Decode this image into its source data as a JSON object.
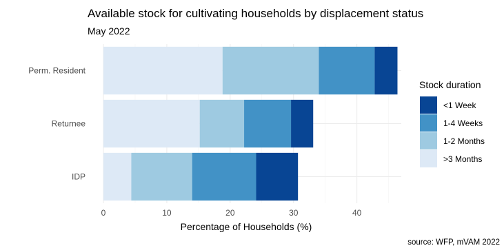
{
  "chart_data": {
    "type": "bar",
    "orientation": "horizontal",
    "stacked": true,
    "title": "Available stock for cultivating households by displacement status",
    "subtitle": "May 2022",
    "xlabel": "Percentage of Households (%)",
    "ylabel": "",
    "caption": "source: WFP, mVAM 2022",
    "categories": [
      "Perm. Resident",
      "Returnee",
      "IDP"
    ],
    "xlim": [
      0,
      47
    ],
    "xticks": [
      0,
      10,
      20,
      30,
      40
    ],
    "legend_title": "Stock duration",
    "legend_position": "right",
    "series": [
      {
        "name": ">3 Months",
        "color": "#dde9f6",
        "values": [
          18.8,
          15.2,
          4.4
        ]
      },
      {
        "name": "1-2 Months",
        "color": "#9ecae1",
        "values": [
          15.2,
          7.0,
          9.6
        ]
      },
      {
        "name": "1-4 Weeks",
        "color": "#4292c6",
        "values": [
          8.8,
          7.4,
          10.1
        ]
      },
      {
        "name": "<1 Week",
        "color": "#084594",
        "values": [
          3.6,
          3.5,
          6.6
        ]
      }
    ],
    "legend_order": [
      "<1 Week",
      "1-4 Weeks",
      "1-2 Months",
      ">3 Months"
    ],
    "grid": true
  }
}
